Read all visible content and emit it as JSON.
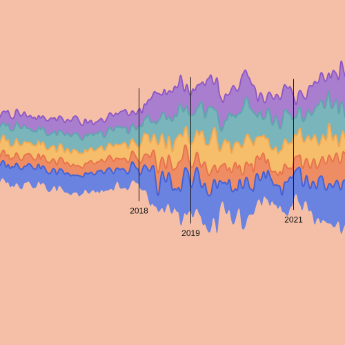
{
  "chart_data": {
    "type": "area",
    "variant": "streamgraph",
    "background": "#f5bfa7",
    "x_range": [
      2015.3,
      2022.0
    ],
    "layer_order_top_to_bottom": [
      "purple",
      "teal",
      "yellow",
      "orange",
      "blue"
    ],
    "series": [
      {
        "color": "#a97ecf",
        "edge": "#9059c4"
      },
      {
        "color": "#79b5bb",
        "edge": "#5fa4ad"
      },
      {
        "color": "#f6bd6b",
        "edge": "#f0a854"
      },
      {
        "color": "#ee8d63",
        "edge": "#e8744b"
      },
      {
        "color": "#6a82e0",
        "edge": "#4561d6"
      }
    ],
    "annotations": [
      {
        "x": 2018.0,
        "label": "2018"
      },
      {
        "x": 2019.0,
        "label": "2019"
      },
      {
        "x": 2021.0,
        "label": "2021"
      }
    ],
    "profile": {
      "x": [
        2015.3,
        2016.0,
        2016.8,
        2017.5,
        2017.9,
        2018.0,
        2018.2,
        2018.6,
        2018.9,
        2019.1,
        2019.5,
        2020.0,
        2020.5,
        2021.0,
        2021.2,
        2021.6,
        2022.0
      ],
      "top_boundary": [
        1.0,
        0.95,
        0.8,
        0.95,
        1.05,
        1.1,
        1.5,
        1.7,
        1.8,
        1.9,
        1.8,
        1.8,
        1.6,
        1.5,
        1.8,
        2.0,
        2.2
      ],
      "bottom_boundary": [
        -1.0,
        -1.1,
        -1.3,
        -1.2,
        -1.1,
        -1.2,
        -1.6,
        -1.8,
        -1.9,
        -2.0,
        -2.1,
        -1.9,
        -1.7,
        -1.6,
        -1.9,
        -2.1,
        -2.3
      ]
    }
  }
}
